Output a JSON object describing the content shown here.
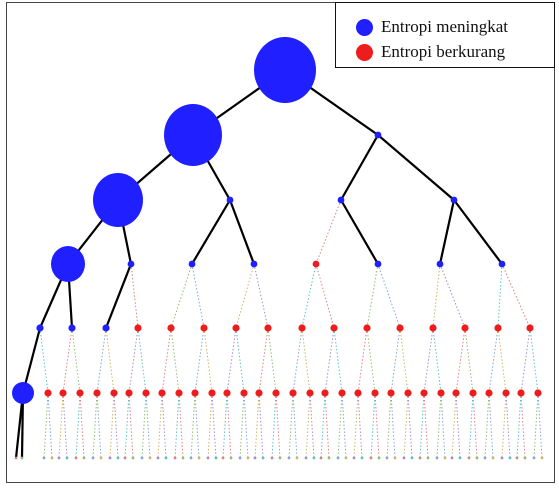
{
  "legend": {
    "increase": {
      "label": "Entropi meningkat",
      "color": "#1f1fff"
    },
    "decrease": {
      "label": "Entropi berkurang",
      "color": "#ee1c1c"
    }
  },
  "colors": {
    "edge": "#000000",
    "node_blue": "#1f1fff",
    "node_red": "#ee1c1c",
    "bottom_palette": [
      "#e08080",
      "#8fbf6f",
      "#7fa7d8",
      "#d8b060",
      "#a58cd0",
      "#60c0c0"
    ]
  },
  "tree": {
    "levels": 7,
    "branching": 2,
    "increasing_path": "leftmost branch"
  }
}
